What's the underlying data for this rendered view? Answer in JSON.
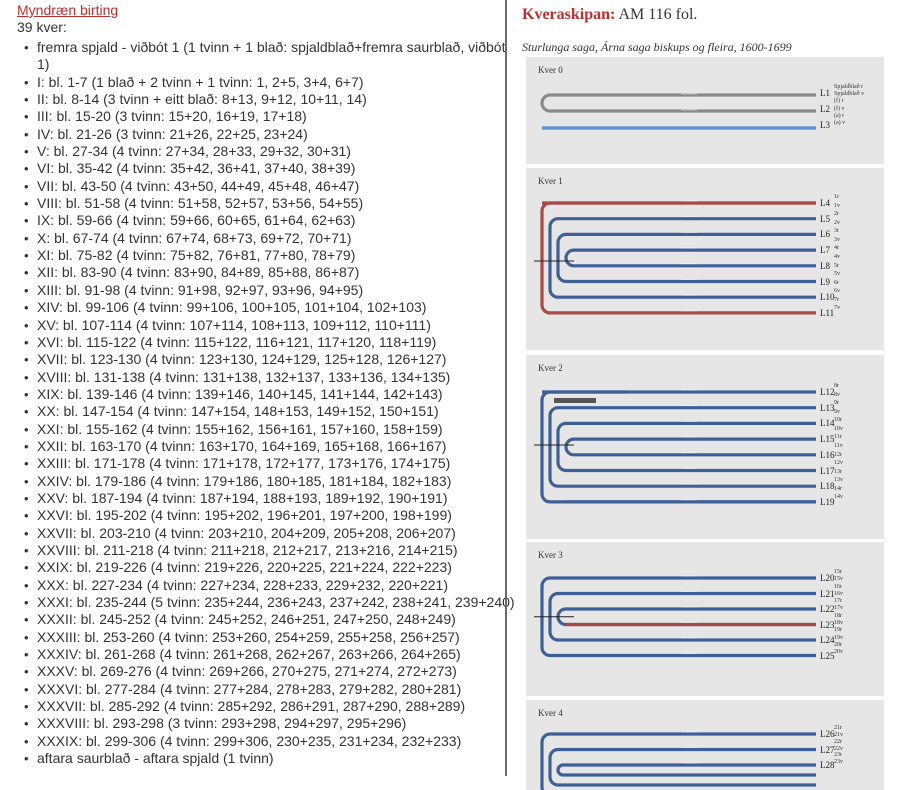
{
  "left": {
    "link": "Myndræn birting",
    "count": "39 kver:",
    "items": [
      "fremra spjald - viðbót 1 (1 tvinn + 1 blað: spjaldblað+fremra saurblað, viðbót 1)",
      "I: bl. 1-7 (1 blað + 2 tvinn + 1 tvinn: 1, 2+5, 3+4, 6+7)",
      "II: bl. 8-14 (3 tvinn + eitt blað: 8+13, 9+12, 10+11, 14)",
      "III: bl. 15-20 (3 tvinn: 15+20, 16+19, 17+18)",
      "IV: bl. 21-26 (3 tvinn: 21+26, 22+25, 23+24)",
      "V: bl. 27-34 (4 tvinn: 27+34, 28+33, 29+32, 30+31)",
      "VI: bl. 35-42 (4 tvinn: 35+42, 36+41, 37+40, 38+39)",
      "VII: bl. 43-50 (4 tvinn: 43+50, 44+49, 45+48, 46+47)",
      "VIII: bl. 51-58 (4 tvinn: 51+58, 52+57, 53+56, 54+55)",
      "IX: bl. 59-66 (4 tvinn: 59+66, 60+65, 61+64, 62+63)",
      "X: bl. 67-74 (4 tvinn: 67+74, 68+73, 69+72, 70+71)",
      "XI: bl. 75-82 (4 tvinn: 75+82, 76+81, 77+80, 78+79)",
      "XII: bl. 83-90 (4 tvinn: 83+90, 84+89, 85+88, 86+87)",
      "XIII: bl. 91-98 (4 tvinn: 91+98, 92+97, 93+96, 94+95)",
      "XIV: bl. 99-106 (4 tvinn: 99+106, 100+105, 101+104, 102+103)",
      "XV: bl. 107-114 (4 tvinn: 107+114, 108+113, 109+112, 110+111)",
      "XVI: bl. 115-122 (4 tvinn: 115+122, 116+121, 117+120, 118+119)",
      "XVII: bl. 123-130 (4 tvinn: 123+130, 124+129, 125+128, 126+127)",
      "XVIII: bl. 131-138 (4 tvinn: 131+138, 132+137, 133+136, 134+135)",
      "XIX: bl. 139-146 (4 tvinn: 139+146, 140+145, 141+144, 142+143)",
      "XX: bl. 147-154 (4 tvinn: 147+154, 148+153, 149+152, 150+151)",
      "XXI: bl. 155-162 (4 tvinn: 155+162, 156+161, 157+160, 158+159)",
      "XXII: bl. 163-170 (4 tvinn: 163+170, 164+169, 165+168, 166+167)",
      "XXIII: bl. 171-178 (4 tvinn: 171+178, 172+177, 173+176, 174+175)",
      "XXIV: bl. 179-186 (4 tvinn: 179+186, 180+185, 181+184, 182+183)",
      "XXV: bl. 187-194 (4 tvinn: 187+194, 188+193, 189+192, 190+191)",
      "XXVI: bl. 195-202 (4 tvinn: 195+202, 196+201, 197+200, 198+199)",
      "XXVII: bl. 203-210 (4 tvinn: 203+210, 204+209, 205+208, 206+207)",
      "XXVIII: bl. 211-218 (4 tvinn: 211+218, 212+217, 213+216, 214+215)",
      "XXIX: bl. 219-226 (4 tvinn: 219+226, 220+225, 221+224, 222+223)",
      "XXX: bl. 227-234 (4 tvinn: 227+234, 228+233, 229+232, 220+221)",
      "XXXI: bl. 235-244 (5 tvinn: 235+244, 236+243, 237+242, 238+241, 239+240)",
      "XXXII: bl. 245-252 (4 tvinn: 245+252, 246+251, 247+250, 248+249)",
      "XXXIII: bl. 253-260 (4 tvinn: 253+260, 254+259, 255+258, 256+257)",
      "XXXIV: bl. 261-268 (4 tvinn: 261+268, 262+267, 263+266, 264+265)",
      "XXXV: bl. 269-276 (4 tvinn: 269+266, 270+275, 271+274, 272+273)",
      "XXXVI: bl. 277-284 (4 tvinn: 277+284, 278+283, 279+282, 280+281)",
      "XXXVII: bl. 285-292 (4 tvinn: 285+292, 286+291, 287+290, 288+289)",
      "XXXVIII: bl. 293-298 (3 tvinn: 293+298, 294+297, 295+296)",
      "XXXIX: bl. 299-306 (4 tvinn: 299+306, 230+235, 231+234, 232+233)",
      "aftara saurblað - aftara spjald (1 tvinn)"
    ]
  },
  "right": {
    "heading_label": "Kveraskipan:",
    "heading_value": "AM 116 fol.",
    "subtitle": "Sturlunga saga, Árna saga biskups og fleira, 1600-1699",
    "colors": {
      "blue": "#3e5f97",
      "red": "#a94a48",
      "gray": "#8a8a8a",
      "lightblue": "#5b8fd6",
      "panel": "#e6e6e6"
    },
    "panels": [
      {
        "title": "Kver 0",
        "leaves": [
          "L1",
          "L2",
          "L3"
        ],
        "sides": [
          "Spjaldblað r",
          "Spjaldblað v",
          "(f) r",
          "(f) v",
          "(a) r",
          "(a) v"
        ]
      },
      {
        "title": "Kver 1",
        "leaves": [
          "L4",
          "L5",
          "L6",
          "L7",
          "L8",
          "L9",
          "L10",
          "L11"
        ],
        "sides": [
          "1r",
          "1v",
          "2r",
          "2v",
          "3r",
          "3v",
          "4r",
          "4v",
          "5r",
          "5v",
          "6r",
          "6v",
          "7r",
          "7v"
        ]
      },
      {
        "title": "Kver 2",
        "leaves": [
          "L12",
          "L13",
          "L14",
          "L15",
          "L16",
          "L17",
          "L18",
          "L19"
        ],
        "sides": [
          "8r",
          "8v",
          "9r",
          "9v",
          "10r",
          "10v",
          "11r",
          "11v",
          "12r",
          "12v",
          "13r",
          "13v",
          "14r",
          "14v"
        ]
      },
      {
        "title": "Kver 3",
        "leaves": [
          "L20",
          "L21",
          "L22",
          "L23",
          "L24",
          "L25"
        ],
        "sides": [
          "15r",
          "15v",
          "16r",
          "16v",
          "17r",
          "17v",
          "18r",
          "18v",
          "19r",
          "19v",
          "20r",
          "20v"
        ]
      },
      {
        "title": "Kver 4",
        "leaves": [
          "L26",
          "L27",
          "L28"
        ],
        "sides": [
          "21r",
          "21v",
          "22r",
          "22v",
          "23r",
          "23v"
        ]
      }
    ]
  }
}
